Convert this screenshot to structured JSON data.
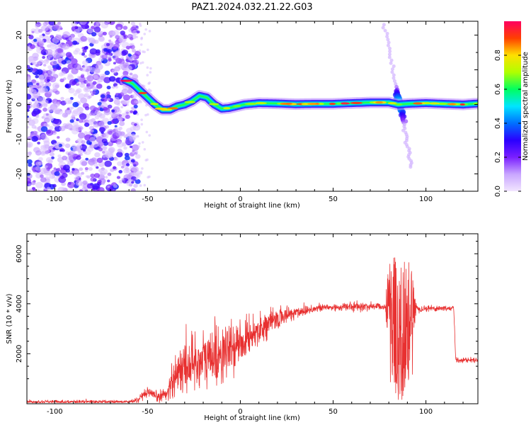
{
  "title": "PAZ1.2024.032.21.22.G03",
  "chart_data": [
    {
      "type": "heatmap",
      "xlabel": "Height of straight line (km)",
      "ylabel": "Frequency (Hz)",
      "xlim": [
        -115,
        128
      ],
      "ylim": [
        -25,
        24
      ],
      "xticks": [
        -100,
        -50,
        0,
        50,
        100
      ],
      "yticks": [
        -20,
        -10,
        0,
        10,
        20
      ],
      "colorbar": {
        "label": "Normalized spectral amplitude",
        "range": [
          0,
          1
        ],
        "ticks": [
          0.0,
          0.2,
          0.4,
          0.6,
          0.8
        ],
        "colors": [
          "#f2e6ff",
          "#c9a6ff",
          "#7a1fff",
          "#2a00ff",
          "#0070ff",
          "#00e5ff",
          "#00ff60",
          "#b0ff00",
          "#ffe000",
          "#ff4000",
          "#ff0060"
        ]
      },
      "ridge": {
        "x": [
          -62,
          -58,
          -54,
          -50,
          -46,
          -42,
          -38,
          -34,
          -30,
          -26,
          -22,
          -18,
          -14,
          -10,
          -6,
          -2,
          2,
          10,
          20,
          30,
          40,
          50,
          60,
          70,
          80,
          85,
          90,
          100,
          110,
          120,
          128
        ],
        "y": [
          7,
          6,
          4,
          2,
          0,
          -1.5,
          -1.5,
          -0.5,
          0,
          1,
          2.5,
          2,
          0,
          -1.2,
          -1,
          -0.5,
          0,
          0.4,
          0.3,
          0.1,
          0.2,
          0.2,
          0.4,
          0.6,
          0.6,
          0,
          0.2,
          0.4,
          0.2,
          0,
          0.3
        ]
      },
      "streak": {
        "x": [
          78,
          84,
          86,
          88,
          92
        ],
        "y": [
          23,
          4,
          0,
          -5,
          -18
        ]
      }
    },
    {
      "type": "line",
      "xlabel": "Height of straight line (km)",
      "ylabel": "SNR (10 * v/v)",
      "xlim": [
        -115,
        128
      ],
      "ylim": [
        0,
        6800
      ],
      "xticks": [
        -100,
        -50,
        0,
        50,
        100
      ],
      "yticks": [
        2000,
        4000,
        6000
      ],
      "color": "#e83030",
      "envelope": {
        "x": [
          -115,
          -60,
          -55,
          -50,
          -45,
          -40,
          -35,
          -30,
          -25,
          -20,
          -15,
          -10,
          -5,
          0,
          5,
          10,
          15,
          20,
          25,
          30,
          35,
          40,
          45,
          50,
          55,
          60,
          65,
          70,
          75,
          78,
          80,
          82,
          84,
          86,
          88,
          90,
          92,
          95,
          100,
          105,
          110,
          115,
          116,
          117,
          120,
          128
        ],
        "y": [
          80,
          80,
          150,
          450,
          250,
          400,
          1200,
          1500,
          1700,
          1700,
          1900,
          2000,
          2200,
          2400,
          2700,
          3000,
          3200,
          3400,
          3550,
          3650,
          3750,
          3800,
          3850,
          3850,
          3870,
          3880,
          3880,
          3900,
          3900,
          3900,
          3800,
          3500,
          3000,
          2500,
          3200,
          3500,
          3700,
          3800,
          3820,
          3820,
          3820,
          3820,
          1800,
          1750,
          1750,
          1750
        ]
      },
      "noise": {
        "x": [
          -115,
          -60,
          -55,
          -40,
          -35,
          -20,
          -10,
          0,
          10,
          40,
          78,
          80,
          84,
          88,
          92,
          95,
          116,
          128
        ],
        "amplitude": [
          60,
          60,
          120,
          250,
          800,
          1200,
          1100,
          700,
          500,
          150,
          150,
          1800,
          3000,
          2800,
          1800,
          120,
          100,
          80
        ]
      }
    }
  ]
}
